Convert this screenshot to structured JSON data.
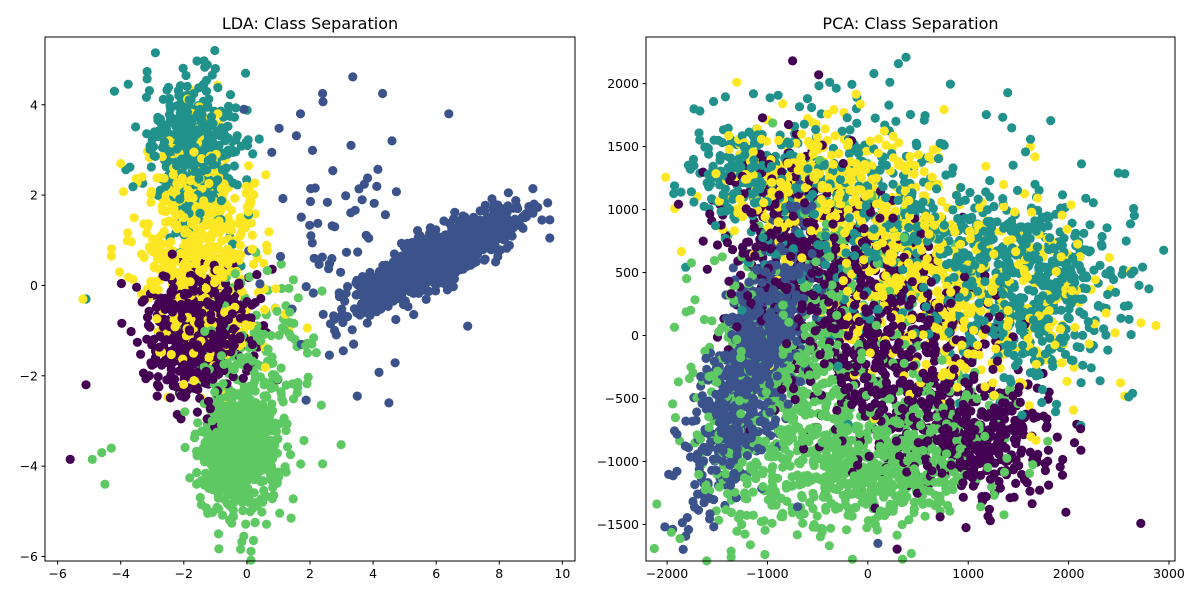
{
  "figure": {
    "background": "#ffffff"
  },
  "class_colors": [
    "#440154",
    "#3b528b",
    "#21918c",
    "#5ec962",
    "#fde725"
  ],
  "chart_data": [
    {
      "type": "scatter",
      "title": "LDA: Class Separation",
      "xlabel": "",
      "ylabel": "",
      "xlim": [
        -6.4,
        10.4
      ],
      "ylim": [
        -6.1,
        5.5
      ],
      "xticks": [
        -6,
        -4,
        -2,
        0,
        2,
        4,
        6,
        8,
        10
      ],
      "yticks": [
        -6,
        -4,
        -2,
        0,
        2,
        4
      ],
      "grid": false,
      "legend": "none",
      "marker": "circle",
      "clusters": [
        {
          "class": 4,
          "n": 450,
          "cx": -1.7,
          "cy": 1.4,
          "sx": 0.9,
          "sy": 1.0
        },
        {
          "class": 2,
          "n": 420,
          "cx": -1.6,
          "cy": 3.0,
          "sx": 0.7,
          "sy": 0.85
        },
        {
          "class": 0,
          "n": 550,
          "cx": -1.5,
          "cy": -1.0,
          "sx": 0.85,
          "sy": 0.75
        },
        {
          "class": 4,
          "n": 200,
          "cx": -1.2,
          "cy": -0.6,
          "sx": 0.9,
          "sy": 0.8
        },
        {
          "class": 3,
          "n": 650,
          "cx": -0.3,
          "cy": -3.6,
          "sx": 0.65,
          "sy": 0.75
        },
        {
          "class": 3,
          "n": 150,
          "cx": 0.3,
          "cy": -1.5,
          "sx": 1.0,
          "sy": 0.9
        },
        {
          "class": 1,
          "n": 1300,
          "cx": 6.0,
          "cy": 0.6,
          "sx": 1.2,
          "sy": 0.5,
          "rho": 0.85
        },
        {
          "class": 1,
          "n": 70,
          "cx": 3.2,
          "cy": 0.4,
          "sx": 1.4,
          "sy": 1.3
        }
      ],
      "highlight_points": [
        {
          "class": 1,
          "x": 2.4,
          "y": 4.25
        },
        {
          "class": 1,
          "x": 4.3,
          "y": 4.25
        },
        {
          "class": 1,
          "x": 6.4,
          "y": 3.8
        },
        {
          "class": 1,
          "x": 4.6,
          "y": 3.2
        },
        {
          "class": 1,
          "x": 3.3,
          "y": 3.1
        },
        {
          "class": 1,
          "x": 1.7,
          "y": 3.8
        },
        {
          "class": 1,
          "x": 7.0,
          "y": -0.9
        },
        {
          "class": 1,
          "x": 4.5,
          "y": -2.6
        },
        {
          "class": 1,
          "x": 3.5,
          "y": -2.45
        },
        {
          "class": 1,
          "x": 9.6,
          "y": 1.45
        },
        {
          "class": 1,
          "x": 9.6,
          "y": 1.05
        },
        {
          "class": 1,
          "x": 9.1,
          "y": 1.8
        },
        {
          "class": 1,
          "x": -0.1,
          "y": 3.9
        },
        {
          "class": 0,
          "x": -5.6,
          "y": -3.85
        },
        {
          "class": 0,
          "x": -5.1,
          "y": -2.2
        },
        {
          "class": 4,
          "x": -5.2,
          "y": -0.3
        },
        {
          "class": 2,
          "x": -5.1,
          "y": -0.3
        },
        {
          "class": 3,
          "x": -4.5,
          "y": -4.4
        },
        {
          "class": 3,
          "x": -4.9,
          "y": -3.85
        },
        {
          "class": 3,
          "x": -4.3,
          "y": -3.6
        },
        {
          "class": 3,
          "x": -4.6,
          "y": -3.7
        },
        {
          "class": 3,
          "x": 1.4,
          "y": -5.15
        },
        {
          "class": 3,
          "x": -0.1,
          "y": -5.55
        },
        {
          "class": 3,
          "x": -0.9,
          "y": -5.5
        },
        {
          "class": 3,
          "x": 2.4,
          "y": -3.95
        },
        {
          "class": 2,
          "x": -2.9,
          "y": 5.15
        },
        {
          "class": 2,
          "x": -1.0,
          "y": 4.8
        },
        {
          "class": 2,
          "x": -4.2,
          "y": 4.3
        },
        {
          "class": 4,
          "x": 0.6,
          "y": 2.45
        },
        {
          "class": 4,
          "x": -4.0,
          "y": 2.7
        },
        {
          "class": 4,
          "x": -4.3,
          "y": 0.65
        }
      ]
    },
    {
      "type": "scatter",
      "title": "PCA: Class Separation",
      "xlabel": "",
      "ylabel": "",
      "xlim": [
        -2210,
        3060
      ],
      "ylim": [
        -1790,
        2370
      ],
      "xticks": [
        -2000,
        -1000,
        0,
        1000,
        2000,
        3000
      ],
      "yticks": [
        -1500,
        -1000,
        -500,
        0,
        500,
        1000,
        1500,
        2000
      ],
      "grid": false,
      "legend": "none",
      "marker": "circle",
      "clusters": [
        {
          "class": 1,
          "n": 900,
          "cx": -1150,
          "cy": -250,
          "sx": 280,
          "sy": 500,
          "rho": 0.7
        },
        {
          "class": 3,
          "n": 700,
          "cx": -750,
          "cy": -350,
          "sx": 500,
          "sy": 620,
          "rho": 0.3
        },
        {
          "class": 3,
          "n": 350,
          "cx": 0,
          "cy": -1100,
          "sx": 450,
          "sy": 220
        },
        {
          "class": 0,
          "n": 750,
          "cx": 150,
          "cy": -100,
          "sx": 650,
          "sy": 500,
          "rho": -0.4
        },
        {
          "class": 0,
          "n": 250,
          "cx": -800,
          "cy": 800,
          "sx": 400,
          "sy": 350
        },
        {
          "class": 0,
          "n": 250,
          "cx": 1100,
          "cy": -850,
          "sx": 400,
          "sy": 200
        },
        {
          "class": 3,
          "n": 200,
          "cx": 600,
          "cy": -800,
          "sx": 400,
          "sy": 300
        },
        {
          "class": 4,
          "n": 600,
          "cx": 700,
          "cy": 450,
          "sx": 750,
          "sy": 450,
          "rho": -0.3
        },
        {
          "class": 4,
          "n": 300,
          "cx": -500,
          "cy": 1200,
          "sx": 500,
          "sy": 250
        },
        {
          "class": 2,
          "n": 450,
          "cx": 1700,
          "cy": 400,
          "sx": 450,
          "sy": 400
        },
        {
          "class": 2,
          "n": 500,
          "cx": 200,
          "cy": 900,
          "sx": 800,
          "sy": 450,
          "rho": -0.2
        },
        {
          "class": 2,
          "n": 150,
          "cx": -1200,
          "cy": 1300,
          "sx": 300,
          "sy": 200
        }
      ],
      "highlight_points": [
        {
          "class": 0,
          "x": -750,
          "y": 2180
        },
        {
          "class": 0,
          "x": -490,
          "y": 2070
        },
        {
          "class": 2,
          "x": 380,
          "y": 2210
        },
        {
          "class": 2,
          "x": 60,
          "y": 2080
        },
        {
          "class": 2,
          "x": 220,
          "y": 2010
        },
        {
          "class": 2,
          "x": -380,
          "y": 2010
        },
        {
          "class": 2,
          "x": -1140,
          "y": 1920
        },
        {
          "class": 2,
          "x": -560,
          "y": 1810
        },
        {
          "class": 2,
          "x": 280,
          "y": 1700
        },
        {
          "class": 4,
          "x": 2870,
          "y": 80
        },
        {
          "class": 4,
          "x": 2720,
          "y": 100
        },
        {
          "class": 2,
          "x": 2800,
          "y": 370
        },
        {
          "class": 1,
          "x": 100,
          "y": -1650
        },
        {
          "class": 0,
          "x": 720,
          "y": -1440
        },
        {
          "class": 3,
          "x": -370,
          "y": -1530
        },
        {
          "class": 1,
          "x": -700,
          "y": -1360
        },
        {
          "class": 4,
          "x": 2560,
          "y": -480
        },
        {
          "class": 0,
          "x": 2120,
          "y": -740
        }
      ]
    }
  ]
}
